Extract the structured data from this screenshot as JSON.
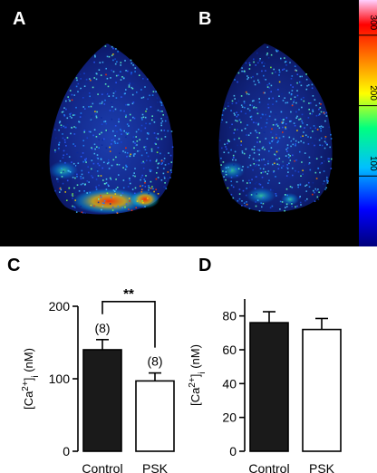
{
  "panels": {
    "a": "A",
    "b": "B",
    "c": "C",
    "d": "D"
  },
  "colorbar": {
    "ticks": [
      "100",
      "200",
      "300"
    ],
    "range": [
      0,
      350
    ],
    "colors": [
      "#00007a",
      "#0000ff",
      "#00bfff",
      "#00ff80",
      "#ffff00",
      "#ff8000",
      "#ff0000",
      "#ffd0ff"
    ]
  },
  "colors": {
    "control_bar": "#1a1a1a",
    "psk_bar": "#ffffff",
    "background_images": "#000000"
  },
  "chart_data": [
    {
      "type": "bar",
      "panel": "C",
      "categories": [
        "Control",
        "PSK"
      ],
      "values": [
        140,
        97
      ],
      "errors": [
        14,
        11
      ],
      "fills": [
        "#1a1a1a",
        "#ffffff"
      ],
      "n_labels": [
        "(8)",
        "(8)"
      ],
      "significance": "**",
      "ylabel_base": "[Ca",
      "ylabel_sup": "2+",
      "ylabel_mid": "]",
      "ylabel_sub": "i",
      "ylabel_unit": " (nM)",
      "yticks": [
        0,
        100,
        200
      ],
      "ylim": [
        0,
        200
      ]
    },
    {
      "type": "bar",
      "panel": "D",
      "categories": [
        "Control",
        "PSK"
      ],
      "values": [
        76,
        72
      ],
      "errors": [
        6.5,
        6.5
      ],
      "fills": [
        "#1a1a1a",
        "#ffffff"
      ],
      "ylabel_base": "[Ca",
      "ylabel_sup": "2+",
      "ylabel_mid": "]",
      "ylabel_sub": "i",
      "ylabel_unit": " (nM)",
      "yticks": [
        0,
        20,
        40,
        60,
        80
      ],
      "ylim": [
        0,
        90
      ]
    }
  ]
}
